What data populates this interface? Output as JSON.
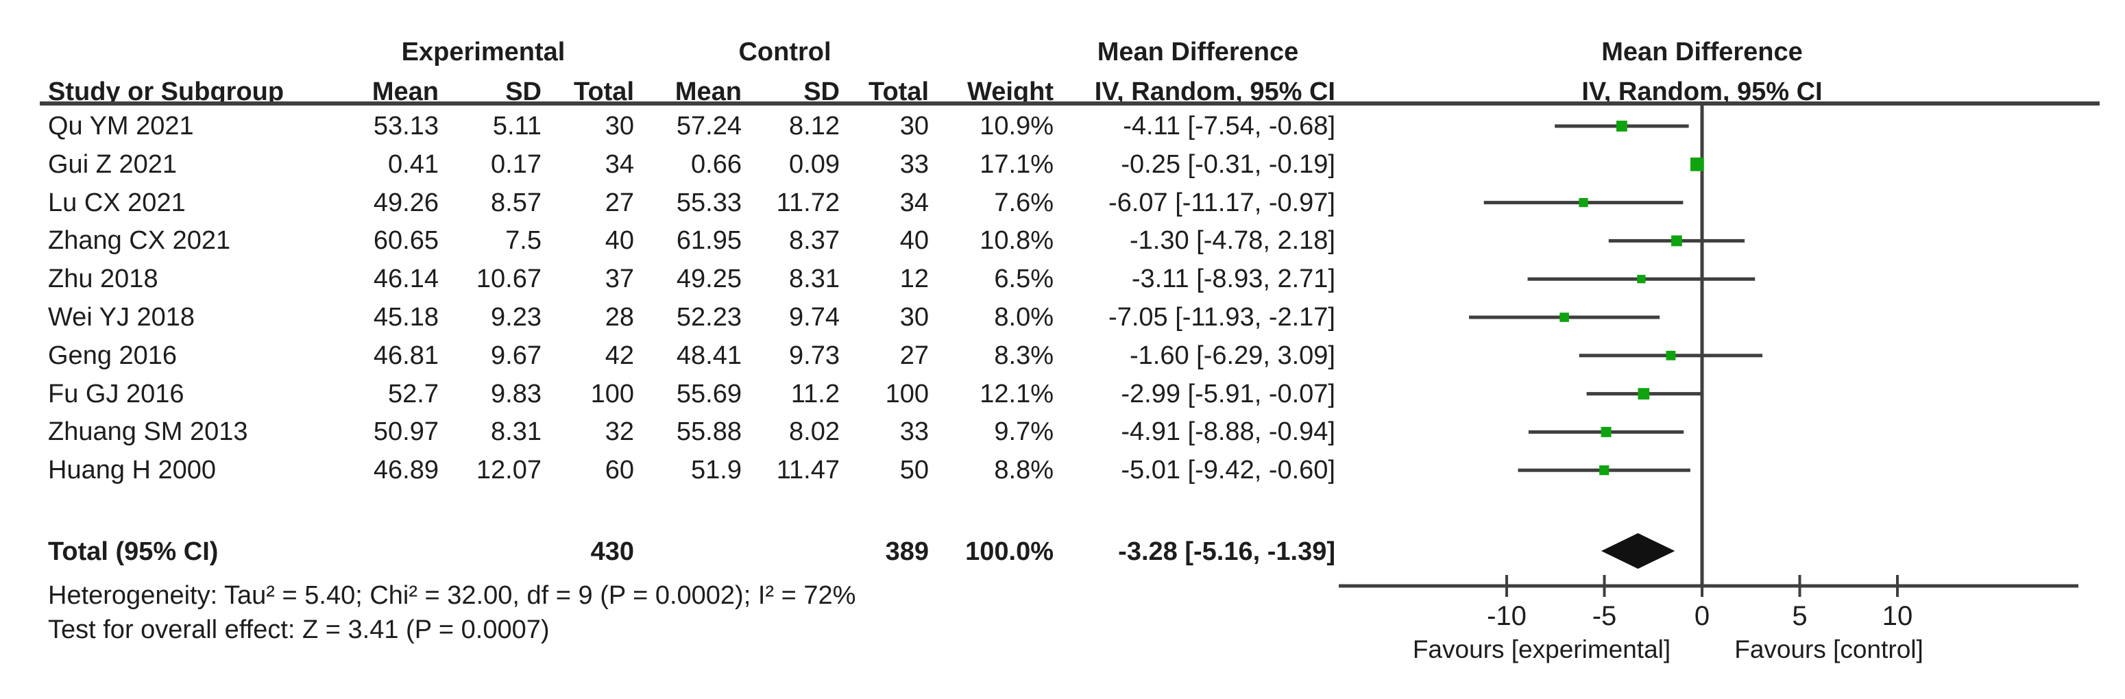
{
  "headers": {
    "experimental": "Experimental",
    "control": "Control",
    "mean_difference": "Mean Difference",
    "study_or_subgroup": "Study or Subgroup",
    "mean": "Mean",
    "sd": "SD",
    "total": "Total",
    "weight": "Weight",
    "iv_random_ci": "IV, Random, 95% CI"
  },
  "colors": {
    "square_green": "#0fa30f",
    "line_gray": "#3f3f3f",
    "diamond_black": "#111111",
    "text": "#1d1d1d"
  },
  "chart_data": {
    "type": "forest",
    "effect_measure": "Mean Difference",
    "model": "IV, Random, 95% CI",
    "studies": [
      {
        "name": "Qu YM 2021",
        "exp": {
          "mean": "53.13",
          "sd": "5.11",
          "total": "30"
        },
        "ctl": {
          "mean": "57.24",
          "sd": "8.12",
          "total": "30"
        },
        "weight": "10.9%",
        "weight_pct": 10.9,
        "md": -4.11,
        "ci_low": -7.54,
        "ci_high": -0.68,
        "ci_text": "-4.11 [-7.54, -0.68]"
      },
      {
        "name": "Gui Z 2021",
        "exp": {
          "mean": "0.41",
          "sd": "0.17",
          "total": "34"
        },
        "ctl": {
          "mean": "0.66",
          "sd": "0.09",
          "total": "33"
        },
        "weight": "17.1%",
        "weight_pct": 17.1,
        "md": -0.25,
        "ci_low": -0.31,
        "ci_high": -0.19,
        "ci_text": "-0.25 [-0.31, -0.19]"
      },
      {
        "name": "Lu CX 2021",
        "exp": {
          "mean": "49.26",
          "sd": "8.57",
          "total": "27"
        },
        "ctl": {
          "mean": "55.33",
          "sd": "11.72",
          "total": "34"
        },
        "weight": "7.6%",
        "weight_pct": 7.6,
        "md": -6.07,
        "ci_low": -11.17,
        "ci_high": -0.97,
        "ci_text": "-6.07 [-11.17, -0.97]"
      },
      {
        "name": "Zhang CX 2021",
        "exp": {
          "mean": "60.65",
          "sd": "7.5",
          "total": "40"
        },
        "ctl": {
          "mean": "61.95",
          "sd": "8.37",
          "total": "40"
        },
        "weight": "10.8%",
        "weight_pct": 10.8,
        "md": -1.3,
        "ci_low": -4.78,
        "ci_high": 2.18,
        "ci_text": "-1.30 [-4.78, 2.18]"
      },
      {
        "name": "Zhu 2018",
        "exp": {
          "mean": "46.14",
          "sd": "10.67",
          "total": "37"
        },
        "ctl": {
          "mean": "49.25",
          "sd": "8.31",
          "total": "12"
        },
        "weight": "6.5%",
        "weight_pct": 6.5,
        "md": -3.11,
        "ci_low": -8.93,
        "ci_high": 2.71,
        "ci_text": "-3.11 [-8.93, 2.71]"
      },
      {
        "name": "Wei YJ 2018",
        "exp": {
          "mean": "45.18",
          "sd": "9.23",
          "total": "28"
        },
        "ctl": {
          "mean": "52.23",
          "sd": "9.74",
          "total": "30"
        },
        "weight": "8.0%",
        "weight_pct": 8.0,
        "md": -7.05,
        "ci_low": -11.93,
        "ci_high": -2.17,
        "ci_text": "-7.05 [-11.93, -2.17]"
      },
      {
        "name": "Geng 2016",
        "exp": {
          "mean": "46.81",
          "sd": "9.67",
          "total": "42"
        },
        "ctl": {
          "mean": "48.41",
          "sd": "9.73",
          "total": "27"
        },
        "weight": "8.3%",
        "weight_pct": 8.3,
        "md": -1.6,
        "ci_low": -6.29,
        "ci_high": 3.09,
        "ci_text": "-1.60 [-6.29, 3.09]"
      },
      {
        "name": "Fu GJ 2016",
        "exp": {
          "mean": "52.7",
          "sd": "9.83",
          "total": "100"
        },
        "ctl": {
          "mean": "55.69",
          "sd": "11.2",
          "total": "100"
        },
        "weight": "12.1%",
        "weight_pct": 12.1,
        "md": -2.99,
        "ci_low": -5.91,
        "ci_high": -0.07,
        "ci_text": "-2.99 [-5.91, -0.07]"
      },
      {
        "name": "Zhuang SM 2013",
        "exp": {
          "mean": "50.97",
          "sd": "8.31",
          "total": "32"
        },
        "ctl": {
          "mean": "55.88",
          "sd": "8.02",
          "total": "33"
        },
        "weight": "9.7%",
        "weight_pct": 9.7,
        "md": -4.91,
        "ci_low": -8.88,
        "ci_high": -0.94,
        "ci_text": "-4.91 [-8.88, -0.94]"
      },
      {
        "name": "Huang H 2000",
        "exp": {
          "mean": "46.89",
          "sd": "12.07",
          "total": "60"
        },
        "ctl": {
          "mean": "51.9",
          "sd": "11.47",
          "total": "50"
        },
        "weight": "8.8%",
        "weight_pct": 8.8,
        "md": -5.01,
        "ci_low": -9.42,
        "ci_high": -0.6,
        "ci_text": "-5.01 [-9.42, -0.60]"
      }
    ],
    "total": {
      "label": "Total (95% CI)",
      "exp_total": "430",
      "ctl_total": "389",
      "weight": "100.0%",
      "md": -3.28,
      "ci_low": -5.16,
      "ci_high": -1.39,
      "ci_text": "-3.28 [-5.16, -1.39]"
    },
    "heterogeneity": "Heterogeneity: Tau² = 5.40; Chi² = 32.00, df = 9 (P = 0.0002); I² = 72%",
    "overall_effect": "Test for overall effect: Z = 3.41 (P = 0.0007)",
    "x_axis": {
      "ticks": [
        -10,
        -5,
        0,
        5,
        10
      ],
      "tick_labels": [
        "-10",
        "-5",
        "0",
        "5",
        "10"
      ],
      "zero_line": 0,
      "favours_left": "Favours [experimental]",
      "favours_right": "Favours [control]"
    }
  }
}
